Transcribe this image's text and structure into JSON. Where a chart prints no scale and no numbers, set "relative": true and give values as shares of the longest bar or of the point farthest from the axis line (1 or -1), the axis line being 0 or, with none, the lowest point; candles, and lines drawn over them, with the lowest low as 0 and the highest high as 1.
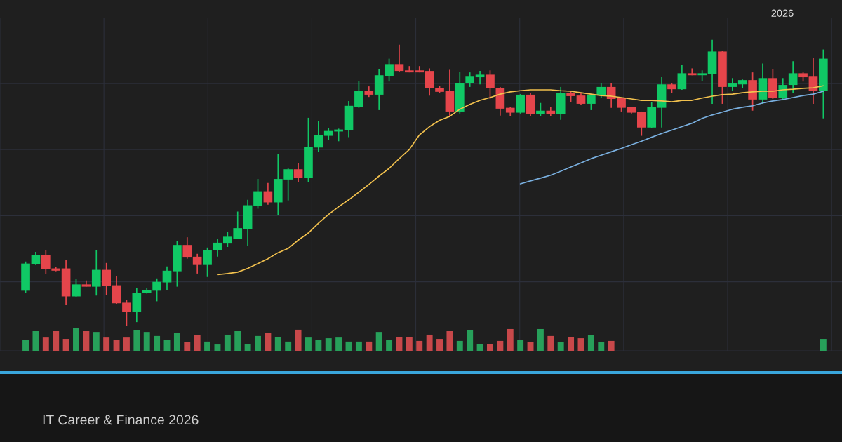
{
  "chart_data": [
    {
      "type": "candlestick",
      "relative": true,
      "tick_labels": false,
      "grid": true,
      "subtitle": "IT Career & Finance 2026",
      "annotations": [
        "2026"
      ],
      "categories": [
        null,
        null,
        null,
        null,
        null,
        null,
        null,
        null,
        null,
        null,
        null,
        null,
        null,
        null,
        null,
        null,
        null,
        null,
        null,
        null,
        null,
        null,
        null,
        null,
        null,
        null,
        null,
        null,
        null,
        null,
        null,
        null,
        null,
        null,
        null,
        null,
        null,
        null,
        null,
        null,
        null,
        null,
        null,
        null,
        null,
        null,
        null,
        null,
        null,
        null,
        null,
        null,
        null,
        null,
        null,
        null,
        null,
        null,
        null,
        null,
        null,
        null,
        null,
        null,
        null,
        null,
        null,
        null,
        null,
        null,
        null,
        null,
        null,
        null,
        null,
        null,
        null,
        null,
        null,
        null
      ],
      "ohlc": [
        [
          0.122,
          0.224,
          0.114,
          0.217
        ],
        [
          0.214,
          0.258,
          0.212,
          0.246
        ],
        [
          0.246,
          0.265,
          0.18,
          0.197
        ],
        [
          0.2,
          0.204,
          0.19,
          0.192
        ],
        [
          0.2,
          0.231,
          0.071,
          0.102
        ],
        [
          0.102,
          0.163,
          0.1,
          0.144
        ],
        [
          0.144,
          0.158,
          0.136,
          0.136
        ],
        [
          0.136,
          0.263,
          0.105,
          0.195
        ],
        [
          0.195,
          0.219,
          0.107,
          0.139
        ],
        [
          0.141,
          0.173,
          0.075,
          0.078
        ],
        [
          0.08,
          0.09,
          0.0,
          0.049
        ],
        [
          0.049,
          0.131,
          0.012,
          0.114
        ],
        [
          0.114,
          0.131,
          0.112,
          0.124
        ],
        [
          0.122,
          0.165,
          0.085,
          0.153
        ],
        [
          0.151,
          0.207,
          0.124,
          0.192
        ],
        [
          0.19,
          0.297,
          0.136,
          0.282
        ],
        [
          0.282,
          0.309,
          0.234,
          0.238
        ],
        [
          0.241,
          0.251,
          0.182,
          0.212
        ],
        [
          0.212,
          0.273,
          0.17,
          0.265
        ],
        [
          0.263,
          0.304,
          0.241,
          0.29
        ],
        [
          0.287,
          0.328,
          0.275,
          0.311
        ],
        [
          0.304,
          0.399,
          0.302,
          0.341
        ],
        [
          0.338,
          0.44,
          0.28,
          0.421
        ],
        [
          0.418,
          0.513,
          0.409,
          0.47
        ],
        [
          0.47,
          0.499,
          0.423,
          0.431
        ],
        [
          0.431,
          0.601,
          0.387,
          0.513
        ],
        [
          0.511,
          0.55,
          0.438,
          0.547
        ],
        [
          0.547,
          0.567,
          0.501,
          0.518
        ],
        [
          0.518,
          0.727,
          0.501,
          0.625
        ],
        [
          0.623,
          0.715,
          0.608,
          0.667
        ],
        [
          0.664,
          0.691,
          0.65,
          0.681
        ],
        [
          0.679,
          0.689,
          0.645,
          0.686
        ],
        [
          0.684,
          0.786,
          0.659,
          0.769
        ],
        [
          0.766,
          0.856,
          0.762,
          0.822
        ],
        [
          0.822,
          0.837,
          0.8,
          0.808
        ],
        [
          0.808,
          0.898,
          0.754,
          0.876
        ],
        [
          0.873,
          0.934,
          0.854,
          0.915
        ],
        [
          0.915,
          0.983,
          0.888,
          0.891
        ],
        [
          0.893,
          0.908,
          0.886,
          0.886
        ],
        [
          0.893,
          0.908,
          0.886,
          0.886
        ],
        [
          0.891,
          0.9,
          0.805,
          0.83
        ],
        [
          0.832,
          0.839,
          0.813,
          0.818
        ],
        [
          0.82,
          0.895,
          0.732,
          0.749
        ],
        [
          0.749,
          0.888,
          0.742,
          0.849
        ],
        [
          0.847,
          0.886,
          0.835,
          0.871
        ],
        [
          0.869,
          0.891,
          0.844,
          0.878
        ],
        [
          0.878,
          0.893,
          0.793,
          0.83
        ],
        [
          0.832,
          0.835,
          0.735,
          0.759
        ],
        [
          0.762,
          0.766,
          0.732,
          0.745
        ],
        [
          0.745,
          0.81,
          0.742,
          0.808
        ],
        [
          0.808,
          0.813,
          0.732,
          0.74
        ],
        [
          0.74,
          0.779,
          0.732,
          0.752
        ],
        [
          0.752,
          0.764,
          0.732,
          0.74
        ],
        [
          0.74,
          0.835,
          0.72,
          0.813
        ],
        [
          0.813,
          0.82,
          0.781,
          0.803
        ],
        [
          0.805,
          0.813,
          0.771,
          0.776
        ],
        [
          0.776,
          0.81,
          0.754,
          0.808
        ],
        [
          0.805,
          0.847,
          0.796,
          0.835
        ],
        [
          0.835,
          0.847,
          0.762,
          0.793
        ],
        [
          0.796,
          0.798,
          0.749,
          0.762
        ],
        [
          0.764,
          0.766,
          0.742,
          0.745
        ],
        [
          0.747,
          0.749,
          0.664,
          0.693
        ],
        [
          0.693,
          0.781,
          0.691,
          0.764
        ],
        [
          0.762,
          0.869,
          0.693,
          0.844
        ],
        [
          0.844,
          0.847,
          0.815,
          0.827
        ],
        [
          0.827,
          0.912,
          0.825,
          0.883
        ],
        [
          0.883,
          0.9,
          0.876,
          0.876
        ],
        [
          0.876,
          0.893,
          0.856,
          0.883
        ],
        [
          0.881,
          1.0,
          0.776,
          0.959
        ],
        [
          0.959,
          0.961,
          0.776,
          0.835
        ],
        [
          0.835,
          0.866,
          0.822,
          0.847
        ],
        [
          0.844,
          0.861,
          0.83,
          0.859
        ],
        [
          0.859,
          0.886,
          0.752,
          0.791
        ],
        [
          0.791,
          0.917,
          0.776,
          0.866
        ],
        [
          0.866,
          0.898,
          0.793,
          0.798
        ],
        [
          0.798,
          0.866,
          0.788,
          0.842
        ],
        [
          0.842,
          0.925,
          0.815,
          0.883
        ],
        [
          0.883,
          0.886,
          0.854,
          0.869
        ],
        [
          0.871,
          0.937,
          0.776,
          0.822
        ],
        [
          0.822,
          0.966,
          0.725,
          0.934
        ]
      ],
      "colors": [
        "#10c865",
        "#10c865",
        "#e5454b",
        "#e5454b",
        "#e5454b",
        "#10c865",
        "#e5454b",
        "#10c865",
        "#e5454b",
        "#e5454b",
        "#e5454b",
        "#10c865",
        "#10c865",
        "#10c865",
        "#10c865",
        "#10c865",
        "#e5454b",
        "#e5454b",
        "#10c865",
        "#10c865",
        "#10c865",
        "#10c865",
        "#10c865",
        "#10c865",
        "#e5454b",
        "#10c865",
        "#10c865",
        "#e5454b",
        "#10c865",
        "#10c865",
        "#10c865",
        "#10c865",
        "#10c865",
        "#10c865",
        "#e5454b",
        "#10c865",
        "#10c865",
        "#e5454b",
        "#e5454b",
        "#e5454b",
        "#e5454b",
        "#e5454b",
        "#e5454b",
        "#10c865",
        "#10c865",
        "#10c865",
        "#e5454b",
        "#e5454b",
        "#e5454b",
        "#10c865",
        "#e5454b",
        "#10c865",
        "#e5454b",
        "#10c865",
        "#e5454b",
        "#e5454b",
        "#10c865",
        "#10c865",
        "#e5454b",
        "#e5454b",
        "#e5454b",
        "#e5454b",
        "#10c865",
        "#10c865",
        "#e5454b",
        "#10c865",
        "#e5454b",
        "#10c865",
        "#10c865",
        "#e5454b",
        "#10c865",
        "#10c865",
        "#e5454b",
        "#10c865",
        "#e5454b",
        "#10c865",
        "#10c865",
        "#e5454b",
        "#e5454b",
        "#10c865"
      ],
      "series": [
        {
          "type": "line",
          "color": "#f2c14e",
          "values": [
            null,
            null,
            null,
            null,
            null,
            null,
            null,
            null,
            null,
            null,
            null,
            null,
            null,
            null,
            null,
            null,
            null,
            null,
            null,
            0.178,
            0.182,
            0.187,
            0.2,
            0.217,
            0.234,
            0.255,
            0.27,
            0.299,
            0.324,
            0.358,
            0.389,
            0.416,
            0.44,
            0.467,
            0.494,
            0.523,
            0.55,
            0.584,
            0.616,
            0.667,
            0.696,
            0.718,
            0.732,
            0.757,
            0.774,
            0.788,
            0.798,
            0.81,
            0.818,
            0.822,
            0.825,
            0.825,
            0.825,
            0.822,
            0.82,
            0.815,
            0.81,
            0.805,
            0.803,
            0.798,
            0.793,
            0.788,
            0.788,
            0.786,
            0.783,
            0.788,
            0.788,
            0.796,
            0.803,
            0.808,
            0.81,
            0.815,
            0.818,
            0.82,
            0.82,
            0.825,
            0.827,
            0.83,
            0.832,
            0.839
          ]
        },
        {
          "type": "line",
          "color": "#7ab0e0",
          "values": [
            null,
            null,
            null,
            null,
            null,
            null,
            null,
            null,
            null,
            null,
            null,
            null,
            null,
            null,
            null,
            null,
            null,
            null,
            null,
            null,
            null,
            null,
            null,
            null,
            null,
            null,
            null,
            null,
            null,
            null,
            null,
            null,
            null,
            null,
            null,
            null,
            null,
            null,
            null,
            null,
            null,
            null,
            null,
            null,
            null,
            null,
            null,
            null,
            null,
            0.496,
            0.506,
            0.516,
            0.526,
            0.54,
            0.555,
            0.569,
            0.584,
            0.596,
            0.608,
            0.62,
            0.633,
            0.645,
            0.659,
            0.672,
            0.684,
            0.696,
            0.708,
            0.725,
            0.737,
            0.747,
            0.757,
            0.764,
            0.769,
            0.779,
            0.786,
            0.791,
            0.798,
            0.805,
            0.81,
            0.82
          ]
        }
      ]
    },
    {
      "type": "bar",
      "relative": true,
      "grid": true,
      "tick_labels": false,
      "categories": [
        null,
        null,
        null,
        null,
        null,
        null,
        null,
        null,
        null,
        null,
        null,
        null,
        null,
        null,
        null,
        null,
        null,
        null,
        null,
        null,
        null,
        null,
        null,
        null,
        null,
        null,
        null,
        null,
        null,
        null,
        null,
        null,
        null,
        null,
        null,
        null,
        null,
        null,
        null,
        null,
        null,
        null,
        null,
        null,
        null,
        null,
        null,
        null,
        null,
        null,
        null,
        null,
        null,
        null,
        null,
        null,
        null,
        null,
        null,
        null,
        null,
        null,
        null,
        null,
        null,
        null,
        null,
        null,
        null,
        null,
        null,
        null,
        null,
        null,
        null,
        null,
        null,
        null,
        null,
        null
      ],
      "values": [
        0.5,
        0.875,
        0.59,
        0.875,
        0.53,
        1,
        0.875,
        0.84,
        0.59,
        0.47,
        0.59,
        0.91,
        0.84,
        0.66,
        0.5,
        0.81,
        0.375,
        0.69,
        0.41,
        0.28,
        0.72,
        0.875,
        0.31,
        0.66,
        0.81,
        0.625,
        0.41,
        0.94,
        0.59,
        0.47,
        0.56,
        0.59,
        0.41,
        0.41,
        0.41,
        0.84,
        0.5,
        0.625,
        0.625,
        0.44,
        0.72,
        0.53,
        0.875,
        0.44,
        0.91,
        0.31,
        0.31,
        0.44,
        0.97,
        0.47,
        0.375,
        0.97,
        0.66,
        0.375,
        0.625,
        0.56,
        0.69,
        0.375,
        0.44,
        null,
        null,
        null,
        null,
        null,
        null,
        null,
        null,
        null,
        null,
        null,
        null,
        null,
        null,
        null,
        null,
        null,
        null,
        null,
        null,
        0.53
      ],
      "colors": [
        "#27a05a",
        "#27a05a",
        "#c8484a",
        "#c8484a",
        "#c8484a",
        "#27a05a",
        "#c8484a",
        "#27a05a",
        "#c8484a",
        "#c8484a",
        "#c8484a",
        "#27a05a",
        "#27a05a",
        "#27a05a",
        "#27a05a",
        "#27a05a",
        "#c8484a",
        "#c8484a",
        "#27a05a",
        "#27a05a",
        "#27a05a",
        "#27a05a",
        "#27a05a",
        "#27a05a",
        "#c8484a",
        "#27a05a",
        "#27a05a",
        "#c8484a",
        "#27a05a",
        "#27a05a",
        "#27a05a",
        "#27a05a",
        "#27a05a",
        "#27a05a",
        "#c8484a",
        "#27a05a",
        "#27a05a",
        "#c8484a",
        "#c8484a",
        "#c8484a",
        "#c8484a",
        "#c8484a",
        "#c8484a",
        "#27a05a",
        "#27a05a",
        "#27a05a",
        "#c8484a",
        "#c8484a",
        "#c8484a",
        "#27a05a",
        "#c8484a",
        "#27a05a",
        "#c8484a",
        "#27a05a",
        "#c8484a",
        "#c8484a",
        "#27a05a",
        "#27a05a",
        "#c8484a",
        "#c8484a",
        "#c8484a",
        "#c8484a",
        "#27a05a",
        "#27a05a",
        "#c8484a",
        "#27a05a",
        "#c8484a",
        "#27a05a",
        "#27a05a",
        "#c8484a",
        "#27a05a",
        "#27a05a",
        "#c8484a",
        "#27a05a",
        "#c8484a",
        "#27a05a",
        "#27a05a",
        "#c8484a",
        "#c8484a",
        "#27a05a"
      ]
    }
  ]
}
